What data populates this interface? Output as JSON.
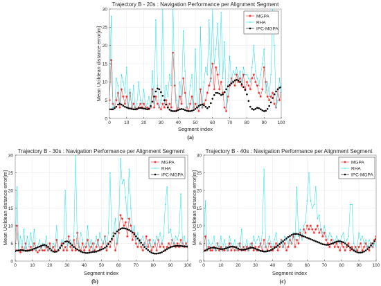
{
  "chart_data": [
    {
      "id": "a",
      "type": "line",
      "title": "Trajectory B - 20s : Navigation Performance per Alignment Segment",
      "xlabel": "Segment index",
      "ylabel": "Mean Ucildean distance error[m]",
      "caption": "(a)",
      "xlim": [
        0,
        100
      ],
      "ylim": [
        0,
        30
      ],
      "xticks": [
        0,
        10,
        20,
        30,
        40,
        50,
        60,
        70,
        80,
        90,
        100
      ],
      "yticks": [
        0,
        5,
        10,
        15,
        20,
        25,
        30
      ],
      "grid": true,
      "legend_placement": "top-right",
      "series": [
        {
          "name": "MGPA",
          "color": "#ff1f1f",
          "marker": "star",
          "values": [
            5,
            16,
            4,
            3,
            5,
            7,
            3,
            8,
            6,
            4,
            6,
            3,
            7,
            3,
            4,
            3,
            2.5,
            3,
            4,
            3,
            4,
            3,
            3,
            2.5,
            3,
            8,
            3,
            6,
            4,
            3,
            2.5,
            4,
            3,
            5,
            3,
            4,
            3,
            18,
            9,
            2,
            3,
            6,
            4,
            11,
            7,
            3,
            2,
            4,
            6,
            3,
            4,
            3,
            2,
            8,
            3,
            4,
            5,
            7,
            9,
            11,
            15,
            8,
            14,
            12,
            8,
            10,
            7,
            3,
            2,
            6,
            9,
            11,
            10,
            9,
            12,
            10,
            11,
            9,
            12,
            8,
            10,
            9,
            8,
            11,
            12,
            10,
            9,
            7,
            6,
            8,
            14,
            10,
            6,
            5,
            6,
            7,
            4,
            3,
            8,
            5,
            7
          ]
        },
        {
          "name": "RHA",
          "color": "#14e0e6",
          "marker": "point",
          "values": [
            6,
            28,
            3,
            3,
            11,
            9,
            4,
            12,
            10,
            7,
            14,
            3,
            8,
            3,
            9,
            3,
            4,
            10,
            5,
            4,
            8,
            3,
            4,
            6,
            3,
            13,
            4,
            27,
            9,
            3,
            5,
            30,
            4,
            9,
            6,
            12,
            9,
            30,
            10,
            5,
            3,
            10,
            6,
            24,
            13,
            3,
            4,
            9,
            12,
            3,
            19,
            4,
            3,
            25,
            3,
            10,
            14,
            12,
            27,
            10,
            30,
            15,
            19,
            26,
            12,
            29,
            11,
            21,
            3,
            10,
            17,
            10,
            13,
            12,
            14,
            11,
            13,
            10,
            14,
            12,
            12,
            11,
            10,
            14,
            20,
            13,
            11,
            9,
            12,
            15,
            19,
            7,
            10,
            6,
            12,
            30,
            20,
            3,
            5,
            11,
            6
          ]
        },
        {
          "name": "IPC-MGPA",
          "color": "#000000",
          "marker": "dot",
          "values": [
            2.5,
            2.5,
            2.5,
            2.8,
            3.2,
            3.8,
            4.0,
            3.8,
            3.5,
            3.2,
            3.0,
            2.8,
            2.7,
            2.6,
            2.5,
            2.5,
            2.6,
            2.8,
            2.9,
            2.8,
            2.7,
            2.6,
            2.5,
            2.7,
            3.4,
            4.6,
            6.0,
            7.4,
            8.2,
            8.0,
            7.2,
            6.2,
            5.0,
            3.8,
            3.0,
            2.4,
            2.1,
            2.0,
            2.0,
            2.1,
            2.3,
            2.5,
            2.6,
            2.5,
            2.3,
            2.1,
            2.0,
            2.0,
            2.1,
            2.3,
            2.6,
            3.0,
            3.4,
            3.7,
            3.8,
            3.6,
            3.2,
            2.8,
            3.2,
            4.2,
            5.4,
            6.4,
            7.0,
            7.0,
            6.8,
            6.4,
            6.6,
            7.2,
            8.0,
            8.8,
            9.2,
            9.6,
            10.0,
            10.4,
            10.6,
            10.4,
            10.0,
            9.4,
            8.6,
            7.8,
            6.6,
            4.8,
            3.2,
            2.6,
            2.4,
            2.6,
            2.9,
            2.8,
            2.5,
            2.2,
            2.0,
            2.1,
            2.6,
            3.4,
            4.4,
            5.6,
            6.6,
            7.4,
            8.0,
            8.4,
            8.6
          ]
        }
      ]
    },
    {
      "id": "b",
      "type": "line",
      "title": "Trajectory B - 30s : Navigation Performance per Alignment Segment",
      "xlabel": "Segment index",
      "ylabel": "Mean Ucildean distance error[m]",
      "caption": "(b)",
      "xlim": [
        0,
        100
      ],
      "ylim": [
        0,
        30
      ],
      "xticks": [
        0,
        10,
        20,
        30,
        40,
        50,
        60,
        70,
        80,
        90,
        100
      ],
      "yticks": [
        0,
        5,
        10,
        15,
        20,
        25,
        30
      ],
      "grid": true,
      "legend_placement": "top-right",
      "series": [
        {
          "name": "MGPA",
          "color": "#ff1f1f",
          "marker": "star",
          "values": [
            3,
            10,
            3,
            2.5,
            4,
            3,
            5,
            3,
            3,
            4,
            3,
            5,
            3,
            2.5,
            3,
            4,
            3,
            3,
            4,
            3,
            5,
            3,
            4,
            3,
            6,
            3,
            4,
            5,
            3,
            4,
            3,
            7,
            4,
            3,
            6,
            3,
            8,
            4,
            3,
            5,
            3,
            4,
            6,
            3,
            4,
            5,
            3,
            4,
            6,
            3,
            4,
            5,
            7,
            3,
            5,
            4,
            6,
            8,
            3,
            5,
            8,
            13,
            12,
            10,
            11,
            7,
            12,
            10,
            6,
            8,
            5,
            4,
            6,
            4,
            3,
            5,
            7,
            4,
            6,
            3,
            4,
            5,
            3,
            6,
            4,
            5,
            4,
            3,
            4,
            5,
            4,
            6,
            5,
            4,
            5,
            4,
            6,
            5,
            4,
            5,
            4
          ]
        },
        {
          "name": "RHA",
          "color": "#14e0e6",
          "marker": "point",
          "values": [
            4,
            21,
            3,
            7,
            4,
            9,
            3,
            7,
            4,
            8,
            4,
            9,
            3,
            4,
            6,
            3,
            5,
            4,
            7,
            3,
            4,
            3,
            5,
            4,
            10,
            3,
            4,
            6,
            5,
            20,
            4,
            5,
            6,
            4,
            7,
            30,
            5,
            4,
            8,
            6,
            4,
            5,
            10,
            4,
            6,
            3,
            5,
            7,
            4,
            8,
            6,
            5,
            7,
            4,
            8,
            25,
            6,
            8,
            12,
            5,
            10,
            29,
            22,
            23,
            18,
            12,
            26,
            15,
            8,
            10,
            6,
            8,
            5,
            6,
            7,
            5,
            4,
            6,
            5,
            4,
            6,
            5,
            7,
            6,
            8,
            5,
            7,
            16,
            21,
            8,
            9,
            6,
            5,
            7,
            6,
            8,
            19,
            5,
            7,
            4,
            6
          ]
        },
        {
          "name": "IPC-MGPA",
          "color": "#000000",
          "marker": "dot",
          "values": [
            2.8,
            3.0,
            3.0,
            3.1,
            3.1,
            3.0,
            2.9,
            2.9,
            3.0,
            3.1,
            3.3,
            3.5,
            3.7,
            3.9,
            4.1,
            4.3,
            4.5,
            4.6,
            4.4,
            4.0,
            3.5,
            3.0,
            2.7,
            2.6,
            2.7,
            3.1,
            3.7,
            4.4,
            5.0,
            5.5,
            5.6,
            5.4,
            5.0,
            4.5,
            4.0,
            3.6,
            3.3,
            3.0,
            2.7,
            2.5,
            2.4,
            2.3,
            2.3,
            2.4,
            2.5,
            2.6,
            2.6,
            2.7,
            2.9,
            3.1,
            3.3,
            3.5,
            3.8,
            4.2,
            4.8,
            5.5,
            6.3,
            7.1,
            7.8,
            8.4,
            8.8,
            9.1,
            9.3,
            9.3,
            9.2,
            9.0,
            8.8,
            8.5,
            8.1,
            7.6,
            7.0,
            6.4,
            5.8,
            5.2,
            4.6,
            4.0,
            3.5,
            3.1,
            2.7,
            2.4,
            2.2,
            2.1,
            2.1,
            2.2,
            2.3,
            2.5,
            2.8,
            3.1,
            3.4,
            3.7,
            3.9,
            4.1,
            4.2,
            4.3,
            4.3,
            4.3,
            4.3,
            4.2,
            4.2,
            4.1,
            4.1
          ]
        }
      ]
    },
    {
      "id": "c",
      "type": "line",
      "title": "Trajectory B - 40s : Navigation Performance per Alignment Segment",
      "xlabel": "Segment index",
      "ylabel": "Mean Ucildean distance error[m]",
      "caption": "(c)",
      "xlim": [
        0,
        100
      ],
      "ylim": [
        0,
        30
      ],
      "xticks": [
        0,
        10,
        20,
        30,
        40,
        50,
        60,
        70,
        80,
        90,
        100
      ],
      "yticks": [
        0,
        5,
        10,
        15,
        20,
        25,
        30
      ],
      "grid": true,
      "legend_placement": "top-right",
      "series": [
        {
          "name": "MGPA",
          "color": "#ff1f1f",
          "marker": "star",
          "values": [
            3,
            7,
            3,
            4,
            3,
            3,
            4,
            3,
            5,
            3,
            4,
            3,
            3,
            4,
            3,
            5,
            3,
            4,
            3,
            4,
            3,
            5,
            3,
            4,
            3,
            4,
            3,
            4,
            5,
            3,
            4,
            3,
            4,
            5,
            3,
            6,
            4,
            3,
            5,
            4,
            3,
            4,
            5,
            3,
            4,
            6,
            4,
            5,
            3,
            4,
            6,
            5,
            7,
            4,
            6,
            5,
            8,
            7,
            9,
            8,
            10,
            9,
            10,
            9,
            8,
            9,
            10,
            8,
            9,
            7,
            8,
            6,
            5,
            4,
            6,
            5,
            4,
            5,
            4,
            3,
            5,
            4,
            3,
            4,
            5,
            3,
            4,
            3,
            4,
            3,
            4,
            5,
            3,
            4,
            5,
            4,
            3,
            5,
            4,
            6,
            7
          ]
        },
        {
          "name": "RHA",
          "color": "#14e0e6",
          "marker": "point",
          "values": [
            4,
            17,
            3,
            6,
            4,
            5,
            7,
            3,
            5,
            4,
            7,
            3,
            6,
            4,
            3,
            7,
            5,
            4,
            6,
            3,
            5,
            4,
            9,
            3,
            4,
            6,
            3,
            5,
            4,
            7,
            5,
            6,
            7,
            4,
            8,
            26,
            4,
            5,
            7,
            5,
            4,
            6,
            8,
            4,
            5,
            6,
            4,
            7,
            6,
            5,
            7,
            5,
            8,
            6,
            21,
            7,
            9,
            6,
            10,
            11,
            17,
            25,
            17,
            15,
            16,
            21,
            12,
            13,
            9,
            8,
            10,
            7,
            6,
            8,
            7,
            6,
            5,
            7,
            6,
            5,
            7,
            8,
            5,
            6,
            7,
            16,
            16,
            5,
            3,
            4,
            8,
            6,
            7,
            5,
            6,
            4,
            6,
            5,
            4,
            5,
            4
          ]
        },
        {
          "name": "IPC-MGPA",
          "color": "#000000",
          "marker": "dot",
          "values": [
            2.8,
            3.0,
            3.3,
            3.5,
            3.7,
            3.8,
            3.8,
            3.7,
            3.6,
            3.5,
            3.4,
            3.4,
            3.5,
            3.6,
            3.8,
            4.0,
            4.1,
            4.1,
            4.0,
            3.8,
            3.5,
            3.3,
            3.2,
            3.2,
            3.3,
            3.4,
            3.6,
            3.7,
            3.8,
            3.7,
            3.5,
            3.3,
            3.1,
            2.9,
            2.8,
            2.7,
            2.7,
            2.8,
            2.9,
            3.1,
            3.4,
            3.7,
            4.0,
            4.4,
            4.8,
            5.2,
            5.6,
            6.0,
            6.4,
            6.8,
            7.1,
            7.4,
            7.6,
            7.7,
            7.7,
            7.6,
            7.4,
            7.2,
            7.0,
            6.8,
            6.6,
            6.4,
            6.2,
            6.0,
            5.8,
            5.6,
            5.4,
            5.2,
            5.0,
            4.8,
            4.7,
            4.6,
            4.6,
            4.7,
            4.9,
            5.1,
            5.3,
            5.5,
            5.6,
            5.6,
            5.5,
            5.3,
            5.0,
            4.6,
            4.2,
            3.8,
            3.4,
            3.0,
            2.7,
            2.5,
            2.4,
            2.4,
            2.5,
            2.7,
            3.0,
            3.4,
            3.9,
            4.4,
            5.0,
            5.6,
            6.2
          ]
        }
      ]
    }
  ]
}
